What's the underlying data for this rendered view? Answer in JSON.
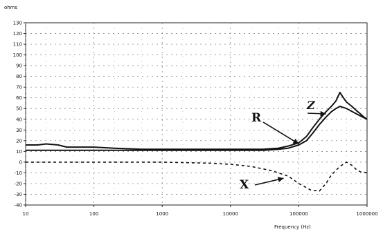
{
  "chart_data": {
    "type": "line",
    "title": "",
    "ylabel": "ohms",
    "xlabel": "Frequency (Hz)",
    "xscale": "log",
    "xlim": [
      10,
      1000000
    ],
    "ylim": [
      -40,
      130
    ],
    "grid": true,
    "y_ticks": [
      "130",
      "120",
      "110",
      "100",
      "90",
      "80",
      "70",
      "60",
      "50",
      "40",
      "30",
      "20",
      "10",
      "0",
      "-10",
      "-20",
      "-30",
      "-40"
    ],
    "x_ticks": [
      "10",
      "100",
      "1000",
      "10000",
      "100000",
      "1000000"
    ],
    "series": [
      {
        "name": "Z",
        "style": "solid",
        "x": [
          10,
          15,
          20,
          30,
          40,
          60,
          100,
          200,
          500,
          1000,
          2000,
          5000,
          10000,
          20000,
          30000,
          50000,
          70000,
          100000,
          130000,
          160000,
          200000,
          250000,
          300000,
          350000,
          400000,
          450000,
          500000,
          600000,
          700000,
          800000,
          900000,
          1000000
        ],
        "values": [
          16,
          16,
          17,
          16,
          14,
          14,
          14,
          13,
          12,
          12,
          12,
          12,
          12,
          12,
          12,
          13,
          15,
          18,
          24,
          32,
          40,
          47,
          52,
          57,
          65,
          60,
          56,
          52,
          48,
          45,
          42,
          40
        ]
      },
      {
        "name": "R",
        "style": "solid",
        "x": [
          10,
          20,
          50,
          100,
          500,
          1000,
          5000,
          10000,
          30000,
          50000,
          70000,
          100000,
          130000,
          160000,
          200000,
          250000,
          300000,
          350000,
          400000,
          500000,
          700000,
          1000000
        ],
        "values": [
          11,
          11,
          11,
          11,
          11,
          11,
          11,
          11,
          11,
          12,
          13,
          16,
          20,
          27,
          35,
          42,
          47,
          50,
          52,
          50,
          45,
          40
        ]
      },
      {
        "name": "X",
        "style": "dashed",
        "x": [
          10,
          20,
          50,
          100,
          500,
          1000,
          5000,
          10000,
          20000,
          40000,
          70000,
          100000,
          150000,
          200000,
          250000,
          300000,
          400000,
          500000,
          600000,
          700000,
          800000,
          1000000
        ],
        "values": [
          0,
          0,
          0,
          0,
          0,
          0,
          -1,
          -2,
          -4,
          -8,
          -13,
          -20,
          -26,
          -27,
          -20,
          -12,
          -4,
          0,
          -3,
          -7,
          -9,
          -10
        ]
      }
    ],
    "annotations": [
      {
        "text": "Z",
        "points_to": "Z"
      },
      {
        "text": "R",
        "points_to": "R"
      },
      {
        "text": "X",
        "points_to": "X"
      }
    ]
  }
}
